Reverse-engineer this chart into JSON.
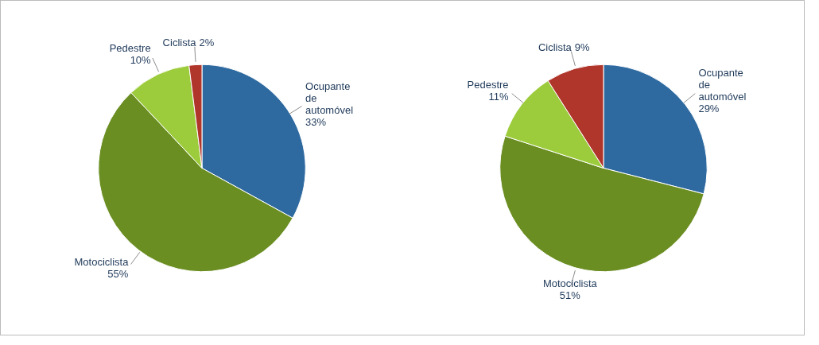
{
  "chart_data": [
    {
      "type": "pie",
      "categories": [
        "Ocupante de automóvel",
        "Motociclista",
        "Pedestre",
        "Ciclista"
      ],
      "values": [
        33,
        55,
        10,
        2
      ],
      "colors": [
        "#2e6aa0",
        "#6b8e23",
        "#9ccc3c",
        "#b0362c"
      ],
      "value_labels": [
        "33%",
        "55%",
        "10%",
        "2%"
      ]
    },
    {
      "type": "pie",
      "categories": [
        "Ocupante de automóvel",
        "Motociclista",
        "Pedestre",
        "Ciclista"
      ],
      "values": [
        29,
        51,
        11,
        9
      ],
      "colors": [
        "#2e6aa0",
        "#6b8e23",
        "#9ccc3c",
        "#b0362c"
      ],
      "value_labels": [
        "29%",
        "51%",
        "11%",
        "9%"
      ]
    }
  ]
}
